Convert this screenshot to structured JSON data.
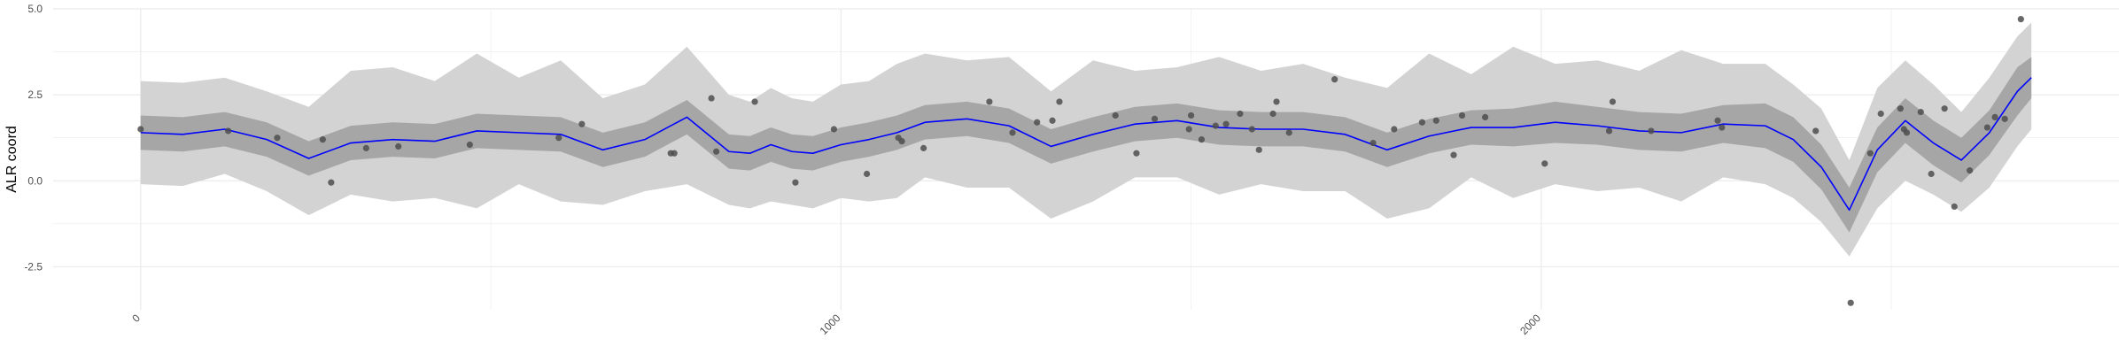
{
  "chart_data": {
    "type": "line",
    "title": "",
    "xlabel": "",
    "ylabel": "ALR coord",
    "xlim": [
      -125,
      2825
    ],
    "ylim": [
      -3.75,
      5.0
    ],
    "x_ticks": [
      0,
      1000,
      2000
    ],
    "x_tick_labels": [
      "0",
      "1000",
      "2000"
    ],
    "x_minor_ticks": [
      500,
      1500,
      2500
    ],
    "y_ticks": [
      -2.5,
      0.0,
      2.5,
      5.0
    ],
    "y_tick_labels": [
      "-2.5",
      "0.0",
      "2.5",
      "5.0"
    ],
    "y_minor_ticks": [
      -1.25,
      1.25,
      3.75
    ],
    "grid": true,
    "legend": "none",
    "colors": {
      "mean_line": "#0000ff",
      "inner_band": "#a6a6a6",
      "outer_band": "#d3d3d3",
      "points": "#4d4d4d",
      "grid": "#ebebeb"
    },
    "mean_curve": {
      "x": [
        0,
        60,
        120,
        180,
        240,
        300,
        360,
        420,
        480,
        540,
        600,
        660,
        720,
        780,
        840,
        870,
        900,
        930,
        960,
        1000,
        1040,
        1080,
        1120,
        1180,
        1240,
        1300,
        1360,
        1420,
        1480,
        1540,
        1600,
        1660,
        1720,
        1780,
        1840,
        1900,
        1960,
        2020,
        2080,
        2140,
        2200,
        2260,
        2320,
        2360,
        2400,
        2440,
        2480,
        2520,
        2560,
        2600,
        2640,
        2680,
        2700
      ],
      "y": [
        1.4,
        1.35,
        1.5,
        1.2,
        0.65,
        1.1,
        1.2,
        1.15,
        1.45,
        1.4,
        1.35,
        0.9,
        1.2,
        1.85,
        0.85,
        0.8,
        1.05,
        0.85,
        0.8,
        1.05,
        1.2,
        1.4,
        1.7,
        1.8,
        1.6,
        1.0,
        1.35,
        1.65,
        1.75,
        1.55,
        1.5,
        1.5,
        1.35,
        0.9,
        1.3,
        1.55,
        1.55,
        1.7,
        1.6,
        1.45,
        1.4,
        1.65,
        1.6,
        1.2,
        0.4,
        -0.85,
        0.9,
        1.75,
        1.1,
        0.6,
        1.4,
        2.6,
        3.0
      ]
    },
    "inner_band": {
      "upper": [
        1.9,
        1.85,
        2.0,
        1.7,
        1.15,
        1.6,
        1.7,
        1.65,
        1.95,
        1.9,
        1.85,
        1.4,
        1.7,
        2.35,
        1.35,
        1.3,
        1.55,
        1.35,
        1.3,
        1.55,
        1.7,
        1.9,
        2.2,
        2.3,
        2.1,
        1.5,
        1.85,
        2.15,
        2.25,
        2.05,
        2.0,
        2.0,
        1.85,
        1.4,
        1.8,
        2.05,
        2.1,
        2.3,
        2.15,
        2.0,
        1.95,
        2.2,
        2.25,
        1.85,
        1.05,
        -0.2,
        1.55,
        2.4,
        1.75,
        1.25,
        2.05,
        3.3,
        3.6
      ],
      "lower": [
        0.9,
        0.85,
        1.0,
        0.7,
        0.15,
        0.6,
        0.7,
        0.65,
        0.95,
        0.9,
        0.85,
        0.4,
        0.7,
        1.35,
        0.35,
        0.3,
        0.55,
        0.35,
        0.3,
        0.55,
        0.7,
        0.9,
        1.2,
        1.3,
        1.1,
        0.5,
        0.85,
        1.15,
        1.25,
        1.05,
        1.0,
        1.0,
        0.85,
        0.4,
        0.8,
        1.05,
        1.0,
        1.1,
        1.05,
        0.9,
        0.85,
        1.1,
        0.95,
        0.55,
        -0.25,
        -1.5,
        0.25,
        1.1,
        0.45,
        -0.05,
        0.75,
        1.9,
        2.4
      ]
    },
    "outer_band": {
      "upper": [
        2.9,
        2.85,
        3.0,
        2.6,
        2.15,
        3.2,
        3.3,
        2.9,
        3.7,
        3.0,
        3.5,
        2.4,
        2.8,
        3.9,
        2.5,
        2.3,
        2.7,
        2.4,
        2.3,
        2.8,
        2.9,
        3.4,
        3.7,
        3.5,
        3.6,
        2.6,
        3.5,
        3.2,
        3.3,
        3.6,
        3.2,
        3.4,
        3.0,
        2.7,
        3.7,
        3.1,
        3.9,
        3.4,
        3.5,
        3.2,
        3.8,
        3.4,
        3.4,
        2.8,
        2.1,
        0.6,
        2.7,
        3.5,
        2.8,
        2.0,
        3.0,
        4.2,
        4.6
      ],
      "lower": [
        -0.1,
        -0.15,
        0.2,
        -0.3,
        -1.0,
        -0.4,
        -0.6,
        -0.5,
        -0.8,
        -0.1,
        -0.6,
        -0.7,
        -0.3,
        -0.1,
        -0.7,
        -0.8,
        -0.6,
        -0.7,
        -0.8,
        -0.5,
        -0.6,
        -0.5,
        0.1,
        -0.2,
        -0.2,
        -1.1,
        -0.6,
        0.1,
        0.1,
        -0.4,
        -0.1,
        -0.3,
        -0.3,
        -1.1,
        -0.8,
        0.1,
        -0.5,
        -0.1,
        -0.3,
        -0.2,
        -0.6,
        0.1,
        -0.1,
        -0.5,
        -1.2,
        -2.2,
        -0.8,
        0.0,
        -0.4,
        -0.9,
        -0.2,
        1.0,
        1.5
      ]
    },
    "points": {
      "x": [
        0,
        125,
        195,
        260,
        272,
        322,
        368,
        470,
        597,
        630,
        757,
        762,
        815,
        822,
        877,
        935,
        990,
        1037,
        1082,
        1087,
        1118,
        1212,
        1245,
        1280,
        1302,
        1312,
        1392,
        1422,
        1448,
        1497,
        1500,
        1515,
        1535,
        1550,
        1570,
        1587,
        1597,
        1617,
        1622,
        1640,
        1705,
        1760,
        1790,
        1830,
        1850,
        1875,
        1887,
        1920,
        2005,
        2097,
        2102,
        2157,
        2252,
        2258,
        2392,
        2442,
        2470,
        2485,
        2513,
        2518,
        2522,
        2542,
        2557,
        2576,
        2590,
        2612,
        2637,
        2648,
        2662,
        2685
      ],
      "y": [
        1.5,
        1.45,
        1.25,
        1.2,
        -0.05,
        0.95,
        1.0,
        1.05,
        1.25,
        1.65,
        0.8,
        0.8,
        2.4,
        0.85,
        2.3,
        -0.05,
        1.5,
        0.2,
        1.25,
        1.15,
        0.95,
        2.3,
        1.4,
        1.7,
        1.75,
        2.3,
        1.9,
        0.8,
        1.8,
        1.5,
        1.9,
        1.2,
        1.6,
        1.65,
        1.95,
        1.5,
        0.9,
        1.95,
        2.3,
        1.4,
        2.95,
        1.1,
        1.5,
        1.7,
        1.75,
        0.75,
        1.9,
        1.85,
        0.5,
        1.45,
        2.3,
        1.45,
        1.75,
        1.55,
        1.45,
        -3.55,
        0.8,
        1.95,
        2.1,
        1.5,
        1.4,
        2.0,
        0.2,
        2.1,
        -0.75,
        0.3,
        1.55,
        1.85,
        1.8,
        4.7
      ]
    }
  }
}
